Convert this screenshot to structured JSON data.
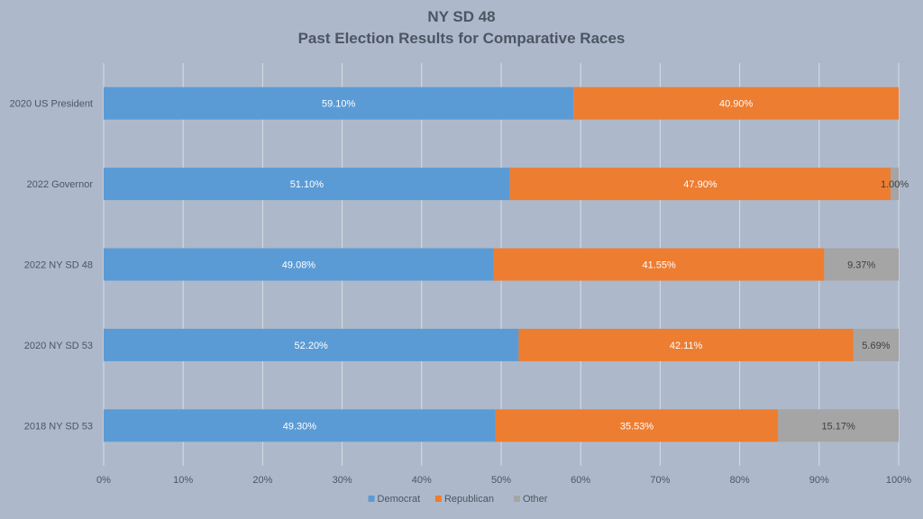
{
  "chart_data": {
    "type": "bar",
    "orientation": "horizontal",
    "stacked": "percent",
    "title": "NY SD 48",
    "subtitle": "Past Election Results for Comparative Races",
    "categories": [
      "2020 US President",
      "2022 Governor",
      "2022 NY SD 48",
      "2020 NY SD 53",
      "2018 NY SD 53"
    ],
    "series": [
      {
        "name": "Democrat",
        "color": "#5b9bd5",
        "label_color": "#ffffff",
        "values": [
          59.1,
          51.1,
          49.08,
          52.2,
          49.3
        ],
        "labels": [
          "59.10%",
          "51.10%",
          "49.08%",
          "52.20%",
          "49.30%"
        ]
      },
      {
        "name": "Republican",
        "color": "#ed7d31",
        "label_color": "#ffffff",
        "values": [
          40.9,
          47.9,
          41.55,
          42.11,
          35.53
        ],
        "labels": [
          "40.90%",
          "47.90%",
          "41.55%",
          "42.11%",
          "35.53%"
        ]
      },
      {
        "name": "Other",
        "color": "#a5a5a5",
        "label_color": "#404040",
        "values": [
          0,
          1.0,
          9.37,
          5.69,
          15.17
        ],
        "labels": [
          "",
          "1.00%",
          "9.37%",
          "5.69%",
          "15.17%"
        ]
      }
    ],
    "xlabel": "",
    "ylabel": "",
    "xlim": [
      0,
      100
    ],
    "xticks": [
      0,
      10,
      20,
      30,
      40,
      50,
      60,
      70,
      80,
      90,
      100
    ],
    "xtick_labels": [
      "0%",
      "10%",
      "20%",
      "30%",
      "40%",
      "50%",
      "60%",
      "70%",
      "80%",
      "90%",
      "100%"
    ],
    "grid": true,
    "legend_position": "bottom",
    "background": "#adb9ca",
    "gridline_color": "#d6dce5",
    "text_color": "#4d5563"
  }
}
